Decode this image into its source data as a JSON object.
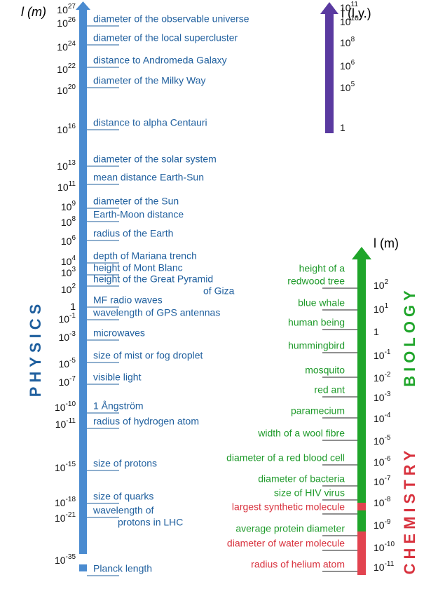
{
  "physics": {
    "header": "l (m)",
    "side_label": "PHYSICS",
    "ticks": [
      {
        "base": "10",
        "exp": "27"
      },
      {
        "base": "10",
        "exp": "26"
      },
      {
        "base": "10",
        "exp": "24"
      },
      {
        "base": "10",
        "exp": "22"
      },
      {
        "base": "10",
        "exp": "20"
      },
      {
        "base": "10",
        "exp": "16"
      },
      {
        "base": "10",
        "exp": "13"
      },
      {
        "base": "10",
        "exp": "11"
      },
      {
        "base": "10",
        "exp": "9"
      },
      {
        "base": "10",
        "exp": "8"
      },
      {
        "base": "10",
        "exp": "6"
      },
      {
        "base": "10",
        "exp": "4"
      },
      {
        "base": "10",
        "exp": "3"
      },
      {
        "base": "10",
        "exp": "2"
      },
      {
        "text": "1"
      },
      {
        "base": "10",
        "exp": "-1"
      },
      {
        "base": "10",
        "exp": "-3"
      },
      {
        "base": "10",
        "exp": "-5"
      },
      {
        "base": "10",
        "exp": "-7"
      },
      {
        "base": "10",
        "exp": "-10"
      },
      {
        "base": "10",
        "exp": "-11"
      },
      {
        "base": "10",
        "exp": "-15"
      },
      {
        "base": "10",
        "exp": "-18"
      },
      {
        "base": "10",
        "exp": "-21"
      },
      {
        "base": "10",
        "exp": "-35"
      }
    ],
    "items": [
      {
        "lines": [
          "diameter of the observable universe"
        ]
      },
      {
        "lines": [
          "diameter of the local supercluster"
        ]
      },
      {
        "lines": [
          "distance  to Andromeda Galaxy"
        ]
      },
      {
        "lines": [
          "diameter of the Milky Way"
        ]
      },
      {
        "lines": [
          "distance to alpha Centauri"
        ]
      },
      {
        "lines": [
          "diameter of the solar system"
        ]
      },
      {
        "lines": [
          "mean distance Earth-Sun"
        ]
      },
      {
        "lines": [
          "diameter of the Sun"
        ]
      },
      {
        "lines": [
          "Earth-Moon distance"
        ]
      },
      {
        "lines": [
          "radius of the Earth"
        ]
      },
      {
        "lines": [
          "depth of Mariana trench"
        ]
      },
      {
        "lines": [
          "height of Mont Blanc"
        ]
      },
      {
        "lines": [
          "height of the Great Pyramid",
          "of Giza"
        ]
      },
      {
        "lines": [
          "MF radio waves"
        ]
      },
      {
        "lines": [
          "wavelength of GPS antennas"
        ]
      },
      {
        "lines": [
          "microwaves"
        ]
      },
      {
        "lines": [
          "size of mist or fog droplet"
        ]
      },
      {
        "lines": [
          "visible light"
        ]
      },
      {
        "lines": [
          "1 Ångström"
        ]
      },
      {
        "lines": [
          "radius of hydrogen atom"
        ]
      },
      {
        "lines": [
          "size of protons"
        ]
      },
      {
        "lines": [
          "size of quarks"
        ]
      },
      {
        "lines": [
          "wavelength of",
          "protons in LHC"
        ]
      },
      {
        "lines": [
          "Planck length"
        ]
      }
    ]
  },
  "light_years": {
    "header": "l (l.y.)",
    "ticks": [
      {
        "base": "10",
        "exp": "11"
      },
      {
        "base": "10",
        "exp": "10"
      },
      {
        "base": "10",
        "exp": "8"
      },
      {
        "base": "10",
        "exp": "6"
      },
      {
        "base": "10",
        "exp": "5"
      },
      {
        "text": "1"
      }
    ]
  },
  "chem_bio": {
    "header": "l (m)",
    "biology_label": "BIOLOGY",
    "chemistry_label": "CHEMISTRY",
    "ticks": [
      {
        "base": "10",
        "exp": "2"
      },
      {
        "base": "10",
        "exp": "1"
      },
      {
        "text": "1"
      },
      {
        "base": "10",
        "exp": "-1"
      },
      {
        "base": "10",
        "exp": "-2"
      },
      {
        "base": "10",
        "exp": "-3"
      },
      {
        "base": "10",
        "exp": "-4"
      },
      {
        "base": "10",
        "exp": "-5"
      },
      {
        "base": "10",
        "exp": "-6"
      },
      {
        "base": "10",
        "exp": "-7"
      },
      {
        "base": "10",
        "exp": "-8"
      },
      {
        "base": "10",
        "exp": "-9"
      },
      {
        "base": "10",
        "exp": "-10"
      },
      {
        "base": "10",
        "exp": "-11"
      }
    ],
    "items": [
      {
        "lines": [
          "height of a",
          "redwood tree"
        ],
        "color": "#1e9a2a"
      },
      {
        "lines": [
          "blue whale"
        ],
        "color": "#1e9a2a"
      },
      {
        "lines": [
          "human being"
        ],
        "color": "#1e9a2a"
      },
      {
        "lines": [
          "hummingbird"
        ],
        "color": "#1e9a2a"
      },
      {
        "lines": [
          "mosquito"
        ],
        "color": "#1e9a2a"
      },
      {
        "lines": [
          "red ant"
        ],
        "color": "#1e9a2a"
      },
      {
        "lines": [
          "paramecium"
        ],
        "color": "#1e9a2a"
      },
      {
        "lines": [
          "width of a wool fibre"
        ],
        "color": "#1e9a2a"
      },
      {
        "lines": [
          "diameter of a red blood cell"
        ],
        "color": "#1e9a2a"
      },
      {
        "lines": [
          "diameter of bacteria"
        ],
        "color": "#1e9a2a"
      },
      {
        "lines": [
          "size of HIV virus"
        ],
        "color": "#1e9a2a"
      },
      {
        "lines": [
          "largest synthetic molecule"
        ],
        "color": "#d8323e"
      },
      {
        "lines": [
          "average protein diameter"
        ],
        "color": "#1e9a2a"
      },
      {
        "lines": [
          "diameter of water molecule"
        ],
        "color": "#d8323e"
      },
      {
        "lines": [
          "radius of helium atom"
        ],
        "color": "#d8323e"
      }
    ]
  }
}
